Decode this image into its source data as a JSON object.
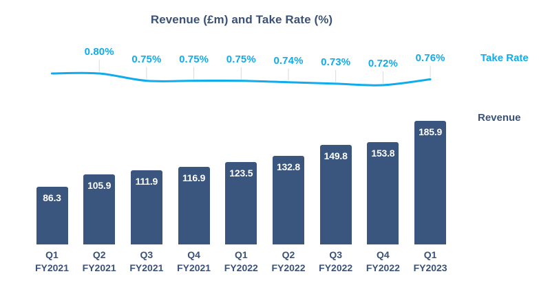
{
  "title": "Revenue (£m) and Take Rate (%)",
  "legend": {
    "take_rate": "Take Rate",
    "revenue": "Revenue"
  },
  "colors": {
    "background": "#ffffff",
    "bar": "#3a567f",
    "bar_value_text": "#ffffff",
    "line": "#0fabec",
    "take_rate_text": "#0fabec",
    "axis_text": "#3a5278",
    "title_text": "#3a5278",
    "leader_tick": "#d9d9d9"
  },
  "chart_data": {
    "type": "bar",
    "subtype": "combo-bar-line",
    "title": "Revenue (£m) and Take Rate (%)",
    "categories": [
      "Q1 FY2021",
      "Q2 FY2021",
      "Q3 FY2021",
      "Q4 FY2021",
      "Q1 FY2022",
      "Q2 FY2022",
      "Q3 FY2022",
      "Q4 FY2022",
      "Q1 FY2023"
    ],
    "series": [
      {
        "name": "Revenue",
        "type": "bar",
        "unit": "£m",
        "values": [
          86.3,
          105.9,
          111.9,
          116.9,
          123.5,
          132.8,
          149.8,
          153.8,
          185.9
        ],
        "labels": [
          "86.3",
          "105.9",
          "111.9",
          "116.9",
          "123.5",
          "132.8",
          "149.8",
          "153.8",
          "185.9"
        ]
      },
      {
        "name": "Take Rate",
        "type": "line",
        "unit": "%",
        "values": [
          0.8,
          0.8,
          0.75,
          0.75,
          0.75,
          0.74,
          0.73,
          0.72,
          0.76
        ],
        "labels": [
          null,
          "0.80%",
          "0.75%",
          "0.75%",
          "0.75%",
          "0.74%",
          "0.73%",
          "0.72%",
          "0.76%"
        ]
      }
    ],
    "grid": false,
    "legend_position": "right",
    "bar_value_labels_position": "inside-top",
    "take_rate_labels_position": "above-line",
    "ylim_bar": [
      0,
      186
    ]
  }
}
